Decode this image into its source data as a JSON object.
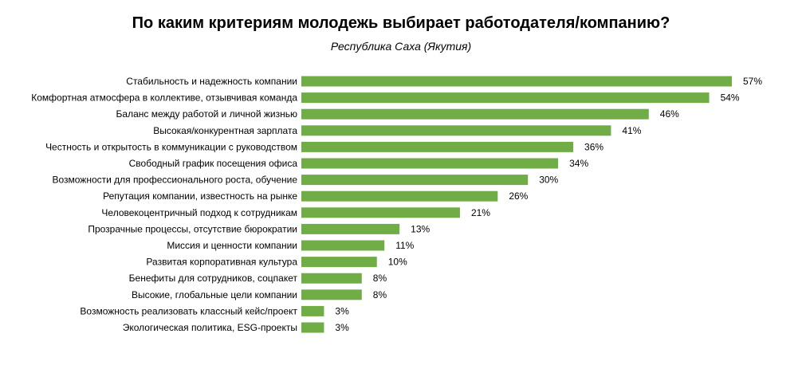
{
  "chart_data": {
    "type": "bar",
    "orientation": "horizontal",
    "title": "По каким критериям молодежь выбирает работодателя/компанию?",
    "subtitle": "Республика Саха (Якутия)",
    "bar_color": "#70ad47",
    "value_suffix": "%",
    "categories": [
      "Стабильность и надежность компании",
      "Комфортная атмосфера в коллективе, отзывчивая команда",
      "Баланс между работой и личной жизнью",
      "Высокая/конкурентная зарплата",
      "Честность и открытость в коммуникации с руководством",
      "Свободный график посещения офиса",
      "Возможности для профессионального роста, обучение",
      "Репутация компании, известность на рынке",
      "Человекоцентричный подход к сотрудникам",
      "Прозрачные процессы, отсутствие бюрократии",
      "Миссия и ценности компании",
      "Развитая корпоративная культура",
      "Бенефиты для сотрудников, соцпакет",
      "Высокие, глобальные цели компании",
      "Возможность реализовать классный кейс/проект",
      "Экологическая политика, ESG-проекты"
    ],
    "values": [
      57,
      54,
      46,
      41,
      36,
      34,
      30,
      26,
      21,
      13,
      11,
      10,
      8,
      8,
      3,
      3
    ],
    "labels": [
      "57%",
      "54%",
      "46%",
      "41%",
      "36%",
      "34%",
      "30%",
      "26%",
      "21%",
      "13%",
      "11%",
      "10%",
      "8%",
      "8%",
      "3%",
      "3%"
    ],
    "xlim": [
      0,
      57
    ],
    "grid": false,
    "legend": "none"
  }
}
